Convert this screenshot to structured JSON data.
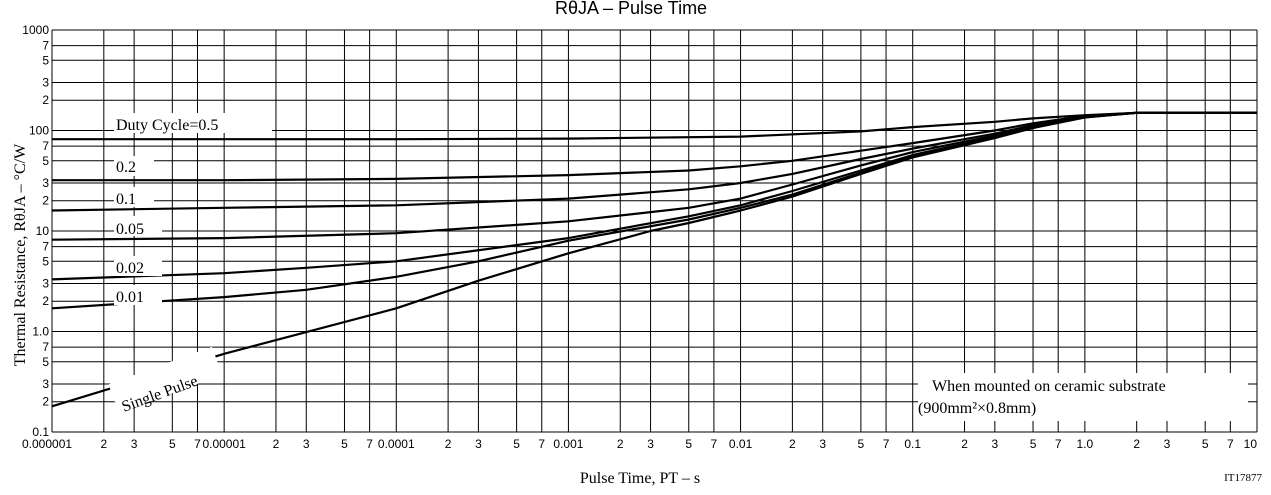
{
  "chart_data": {
    "type": "line",
    "title": "RθJA – Pulse Time",
    "xlabel": "Pulse Time, PT – s",
    "ylabel": "Thermal Resistance, RθJA – °C/W",
    "x_scale": "log",
    "y_scale": "log",
    "xlim": [
      1e-06,
      10
    ],
    "ylim": [
      0.1,
      1000
    ],
    "grid": true,
    "x_tick_labels": [
      {
        "v": 1e-06,
        "t": "0.000001"
      },
      {
        "v": 2e-06,
        "t": "2"
      },
      {
        "v": 3e-06,
        "t": "3"
      },
      {
        "v": 5e-06,
        "t": "5"
      },
      {
        "v": 7e-06,
        "t": "7"
      },
      {
        "v": 1e-05,
        "t": "0.00001"
      },
      {
        "v": 2e-05,
        "t": "2"
      },
      {
        "v": 3e-05,
        "t": "3"
      },
      {
        "v": 5e-05,
        "t": "5"
      },
      {
        "v": 7e-05,
        "t": "7"
      },
      {
        "v": 0.0001,
        "t": "0.0001"
      },
      {
        "v": 0.0002,
        "t": "2"
      },
      {
        "v": 0.0003,
        "t": "3"
      },
      {
        "v": 0.0005,
        "t": "5"
      },
      {
        "v": 0.0007,
        "t": "7"
      },
      {
        "v": 0.001,
        "t": "0.001"
      },
      {
        "v": 0.002,
        "t": "2"
      },
      {
        "v": 0.003,
        "t": "3"
      },
      {
        "v": 0.005,
        "t": "5"
      },
      {
        "v": 0.007,
        "t": "7"
      },
      {
        "v": 0.01,
        "t": "0.01"
      },
      {
        "v": 0.02,
        "t": "2"
      },
      {
        "v": 0.03,
        "t": "3"
      },
      {
        "v": 0.05,
        "t": "5"
      },
      {
        "v": 0.07,
        "t": "7"
      },
      {
        "v": 0.1,
        "t": "0.1"
      },
      {
        "v": 0.2,
        "t": "2"
      },
      {
        "v": 0.3,
        "t": "3"
      },
      {
        "v": 0.5,
        "t": "5"
      },
      {
        "v": 0.7,
        "t": "7"
      },
      {
        "v": 1,
        "t": "1.0"
      },
      {
        "v": 2,
        "t": "2"
      },
      {
        "v": 3,
        "t": "3"
      },
      {
        "v": 5,
        "t": "5"
      },
      {
        "v": 7,
        "t": "7"
      },
      {
        "v": 10,
        "t": "10"
      }
    ],
    "y_tick_labels": [
      {
        "v": 0.1,
        "t": "0.1"
      },
      {
        "v": 0.2,
        "t": "2"
      },
      {
        "v": 0.3,
        "t": "3"
      },
      {
        "v": 0.5,
        "t": "5"
      },
      {
        "v": 0.7,
        "t": "7"
      },
      {
        "v": 1,
        "t": "1.0"
      },
      {
        "v": 2,
        "t": "2"
      },
      {
        "v": 3,
        "t": "3"
      },
      {
        "v": 5,
        "t": "5"
      },
      {
        "v": 7,
        "t": "7"
      },
      {
        "v": 10,
        "t": "10"
      },
      {
        "v": 20,
        "t": "2"
      },
      {
        "v": 30,
        "t": "3"
      },
      {
        "v": 50,
        "t": "5"
      },
      {
        "v": 70,
        "t": "7"
      },
      {
        "v": 100,
        "t": "100"
      },
      {
        "v": 200,
        "t": "2"
      },
      {
        "v": 300,
        "t": "3"
      },
      {
        "v": 500,
        "t": "5"
      },
      {
        "v": 700,
        "t": "7"
      },
      {
        "v": 1000,
        "t": "1000"
      }
    ],
    "series": [
      {
        "name": "Duty Cycle=0.5",
        "points": [
          [
            1e-06,
            82
          ],
          [
            1e-05,
            82
          ],
          [
            0.0001,
            82
          ],
          [
            0.001,
            83
          ],
          [
            0.01,
            87
          ],
          [
            0.05,
            98
          ],
          [
            0.1,
            108
          ],
          [
            0.3,
            122
          ],
          [
            0.5,
            132
          ],
          [
            1,
            142
          ],
          [
            2,
            150
          ],
          [
            10,
            150
          ]
        ]
      },
      {
        "name": "0.2",
        "points": [
          [
            1e-06,
            32
          ],
          [
            1e-05,
            32
          ],
          [
            0.0001,
            33
          ],
          [
            0.001,
            36
          ],
          [
            0.005,
            40
          ],
          [
            0.01,
            44
          ],
          [
            0.02,
            50
          ],
          [
            0.05,
            63
          ],
          [
            0.1,
            75
          ],
          [
            0.3,
            100
          ],
          [
            0.5,
            118
          ],
          [
            1,
            140
          ],
          [
            2,
            150
          ],
          [
            10,
            150
          ]
        ]
      },
      {
        "name": "0.1",
        "points": [
          [
            1e-06,
            16
          ],
          [
            1e-05,
            17
          ],
          [
            0.0001,
            18
          ],
          [
            0.001,
            21
          ],
          [
            0.005,
            26
          ],
          [
            0.01,
            30
          ],
          [
            0.02,
            37
          ],
          [
            0.05,
            52
          ],
          [
            0.1,
            66
          ],
          [
            0.3,
            93
          ],
          [
            0.5,
            113
          ],
          [
            1,
            138
          ],
          [
            2,
            150
          ],
          [
            10,
            150
          ]
        ]
      },
      {
        "name": "0.05",
        "points": [
          [
            1e-06,
            8.2
          ],
          [
            1e-05,
            8.5
          ],
          [
            0.0001,
            9.5
          ],
          [
            0.001,
            12.5
          ],
          [
            0.005,
            17
          ],
          [
            0.01,
            21
          ],
          [
            0.02,
            29
          ],
          [
            0.05,
            45
          ],
          [
            0.1,
            61
          ],
          [
            0.3,
            89
          ],
          [
            0.5,
            110
          ],
          [
            1,
            137
          ],
          [
            2,
            150
          ],
          [
            10,
            150
          ]
        ]
      },
      {
        "name": "0.02",
        "points": [
          [
            1e-06,
            3.3
          ],
          [
            1e-05,
            3.8
          ],
          [
            3e-05,
            4.3
          ],
          [
            0.0001,
            5
          ],
          [
            0.001,
            8.5
          ],
          [
            0.005,
            14
          ],
          [
            0.01,
            18
          ],
          [
            0.02,
            25
          ],
          [
            0.05,
            40
          ],
          [
            0.1,
            57
          ],
          [
            0.3,
            86
          ],
          [
            0.5,
            108
          ],
          [
            1,
            136
          ],
          [
            2,
            150
          ],
          [
            10,
            150
          ]
        ]
      },
      {
        "name": "0.01",
        "points": [
          [
            1e-06,
            1.7
          ],
          [
            1e-05,
            2.2
          ],
          [
            3e-05,
            2.6
          ],
          [
            0.0001,
            3.5
          ],
          [
            0.0003,
            5
          ],
          [
            0.001,
            8
          ],
          [
            0.005,
            13
          ],
          [
            0.01,
            17
          ],
          [
            0.02,
            23
          ],
          [
            0.05,
            38
          ],
          [
            0.1,
            55
          ],
          [
            0.3,
            85
          ],
          [
            0.5,
            107
          ],
          [
            1,
            135
          ],
          [
            2,
            150
          ],
          [
            10,
            150
          ]
        ]
      },
      {
        "name": "Single Pulse",
        "points": [
          [
            1e-06,
            0.18
          ],
          [
            1e-05,
            0.6
          ],
          [
            0.0001,
            1.7
          ],
          [
            0.0003,
            3.2
          ],
          [
            0.001,
            6
          ],
          [
            0.003,
            10
          ],
          [
            0.005,
            12
          ],
          [
            0.01,
            16
          ],
          [
            0.02,
            22
          ],
          [
            0.05,
            37
          ],
          [
            0.1,
            54
          ],
          [
            0.3,
            84
          ],
          [
            0.5,
            106
          ],
          [
            1,
            135
          ],
          [
            2,
            150
          ],
          [
            10,
            150
          ]
        ]
      }
    ],
    "annotations": {
      "note_line1": "When mounted on ceramic substrate",
      "note_line2": "(900mm²×0.8mm)",
      "code": "IT17877"
    }
  }
}
